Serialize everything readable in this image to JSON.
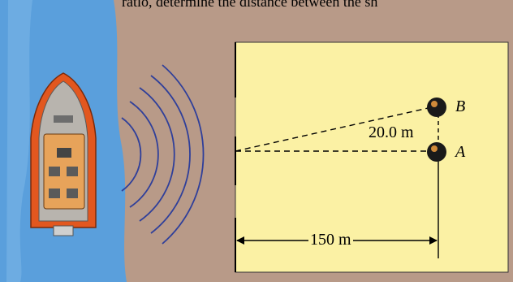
{
  "caption_fragment": "ratio, determine the distance between the sh",
  "labels": {
    "point_b": "B",
    "point_a": "A",
    "separation": "20.0 m",
    "distance": "150 m"
  },
  "colors": {
    "water": "#5a9fdc",
    "water_deep": "#3e7fc4",
    "shore": "#b89a88",
    "screen": "#fbf1a4",
    "wave": "#2f3f9a",
    "boat_hull": "#e2571f",
    "boat_deck": "#b8b4ae",
    "cabin": "#e7a35a",
    "speaker": "#1a1a1a"
  },
  "icons": {
    "boat": "boat-icon",
    "sound_waves": "sound-wave-icon",
    "speaker": "speaker-icon"
  }
}
